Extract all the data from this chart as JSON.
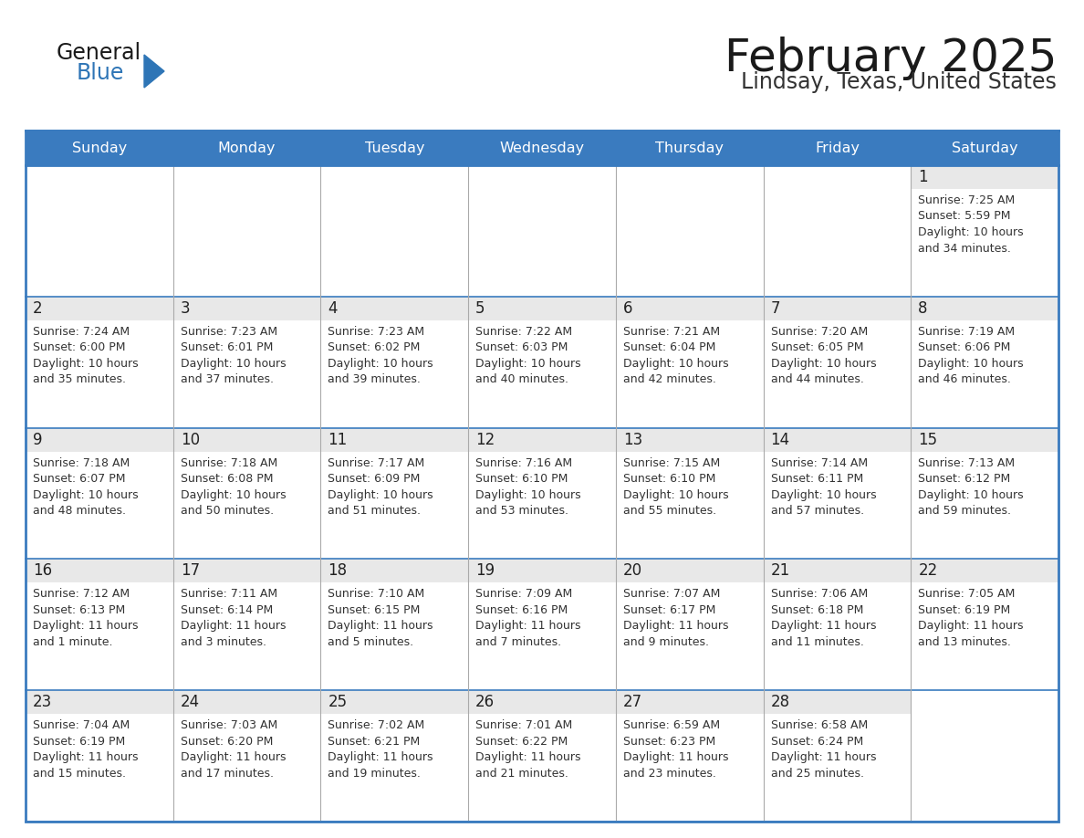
{
  "title": "February 2025",
  "subtitle": "Lindsay, Texas, United States",
  "header_color": "#3a7bbf",
  "header_text_color": "#ffffff",
  "cell_bg_white": "#ffffff",
  "cell_day_strip_color": "#e8e8e8",
  "border_color": "#3a7bbf",
  "day_number_color": "#222222",
  "cell_text_color": "#333333",
  "days_of_week": [
    "Sunday",
    "Monday",
    "Tuesday",
    "Wednesday",
    "Thursday",
    "Friday",
    "Saturday"
  ],
  "logo_general_color": "#1a1a1a",
  "logo_blue_color": "#2e75b6",
  "logo_triangle_color": "#2e75b6",
  "title_color": "#1a1a1a",
  "subtitle_color": "#333333",
  "calendar_data": [
    [
      null,
      null,
      null,
      null,
      null,
      null,
      {
        "day": "1",
        "sunrise": "Sunrise: 7:25 AM",
        "sunset": "Sunset: 5:59 PM",
        "daylight1": "Daylight: 10 hours",
        "daylight2": "and 34 minutes."
      }
    ],
    [
      {
        "day": "2",
        "sunrise": "Sunrise: 7:24 AM",
        "sunset": "Sunset: 6:00 PM",
        "daylight1": "Daylight: 10 hours",
        "daylight2": "and 35 minutes."
      },
      {
        "day": "3",
        "sunrise": "Sunrise: 7:23 AM",
        "sunset": "Sunset: 6:01 PM",
        "daylight1": "Daylight: 10 hours",
        "daylight2": "and 37 minutes."
      },
      {
        "day": "4",
        "sunrise": "Sunrise: 7:23 AM",
        "sunset": "Sunset: 6:02 PM",
        "daylight1": "Daylight: 10 hours",
        "daylight2": "and 39 minutes."
      },
      {
        "day": "5",
        "sunrise": "Sunrise: 7:22 AM",
        "sunset": "Sunset: 6:03 PM",
        "daylight1": "Daylight: 10 hours",
        "daylight2": "and 40 minutes."
      },
      {
        "day": "6",
        "sunrise": "Sunrise: 7:21 AM",
        "sunset": "Sunset: 6:04 PM",
        "daylight1": "Daylight: 10 hours",
        "daylight2": "and 42 minutes."
      },
      {
        "day": "7",
        "sunrise": "Sunrise: 7:20 AM",
        "sunset": "Sunset: 6:05 PM",
        "daylight1": "Daylight: 10 hours",
        "daylight2": "and 44 minutes."
      },
      {
        "day": "8",
        "sunrise": "Sunrise: 7:19 AM",
        "sunset": "Sunset: 6:06 PM",
        "daylight1": "Daylight: 10 hours",
        "daylight2": "and 46 minutes."
      }
    ],
    [
      {
        "day": "9",
        "sunrise": "Sunrise: 7:18 AM",
        "sunset": "Sunset: 6:07 PM",
        "daylight1": "Daylight: 10 hours",
        "daylight2": "and 48 minutes."
      },
      {
        "day": "10",
        "sunrise": "Sunrise: 7:18 AM",
        "sunset": "Sunset: 6:08 PM",
        "daylight1": "Daylight: 10 hours",
        "daylight2": "and 50 minutes."
      },
      {
        "day": "11",
        "sunrise": "Sunrise: 7:17 AM",
        "sunset": "Sunset: 6:09 PM",
        "daylight1": "Daylight: 10 hours",
        "daylight2": "and 51 minutes."
      },
      {
        "day": "12",
        "sunrise": "Sunrise: 7:16 AM",
        "sunset": "Sunset: 6:10 PM",
        "daylight1": "Daylight: 10 hours",
        "daylight2": "and 53 minutes."
      },
      {
        "day": "13",
        "sunrise": "Sunrise: 7:15 AM",
        "sunset": "Sunset: 6:10 PM",
        "daylight1": "Daylight: 10 hours",
        "daylight2": "and 55 minutes."
      },
      {
        "day": "14",
        "sunrise": "Sunrise: 7:14 AM",
        "sunset": "Sunset: 6:11 PM",
        "daylight1": "Daylight: 10 hours",
        "daylight2": "and 57 minutes."
      },
      {
        "day": "15",
        "sunrise": "Sunrise: 7:13 AM",
        "sunset": "Sunset: 6:12 PM",
        "daylight1": "Daylight: 10 hours",
        "daylight2": "and 59 minutes."
      }
    ],
    [
      {
        "day": "16",
        "sunrise": "Sunrise: 7:12 AM",
        "sunset": "Sunset: 6:13 PM",
        "daylight1": "Daylight: 11 hours",
        "daylight2": "and 1 minute."
      },
      {
        "day": "17",
        "sunrise": "Sunrise: 7:11 AM",
        "sunset": "Sunset: 6:14 PM",
        "daylight1": "Daylight: 11 hours",
        "daylight2": "and 3 minutes."
      },
      {
        "day": "18",
        "sunrise": "Sunrise: 7:10 AM",
        "sunset": "Sunset: 6:15 PM",
        "daylight1": "Daylight: 11 hours",
        "daylight2": "and 5 minutes."
      },
      {
        "day": "19",
        "sunrise": "Sunrise: 7:09 AM",
        "sunset": "Sunset: 6:16 PM",
        "daylight1": "Daylight: 11 hours",
        "daylight2": "and 7 minutes."
      },
      {
        "day": "20",
        "sunrise": "Sunrise: 7:07 AM",
        "sunset": "Sunset: 6:17 PM",
        "daylight1": "Daylight: 11 hours",
        "daylight2": "and 9 minutes."
      },
      {
        "day": "21",
        "sunrise": "Sunrise: 7:06 AM",
        "sunset": "Sunset: 6:18 PM",
        "daylight1": "Daylight: 11 hours",
        "daylight2": "and 11 minutes."
      },
      {
        "day": "22",
        "sunrise": "Sunrise: 7:05 AM",
        "sunset": "Sunset: 6:19 PM",
        "daylight1": "Daylight: 11 hours",
        "daylight2": "and 13 minutes."
      }
    ],
    [
      {
        "day": "23",
        "sunrise": "Sunrise: 7:04 AM",
        "sunset": "Sunset: 6:19 PM",
        "daylight1": "Daylight: 11 hours",
        "daylight2": "and 15 minutes."
      },
      {
        "day": "24",
        "sunrise": "Sunrise: 7:03 AM",
        "sunset": "Sunset: 6:20 PM",
        "daylight1": "Daylight: 11 hours",
        "daylight2": "and 17 minutes."
      },
      {
        "day": "25",
        "sunrise": "Sunrise: 7:02 AM",
        "sunset": "Sunset: 6:21 PM",
        "daylight1": "Daylight: 11 hours",
        "daylight2": "and 19 minutes."
      },
      {
        "day": "26",
        "sunrise": "Sunrise: 7:01 AM",
        "sunset": "Sunset: 6:22 PM",
        "daylight1": "Daylight: 11 hours",
        "daylight2": "and 21 minutes."
      },
      {
        "day": "27",
        "sunrise": "Sunrise: 6:59 AM",
        "sunset": "Sunset: 6:23 PM",
        "daylight1": "Daylight: 11 hours",
        "daylight2": "and 23 minutes."
      },
      {
        "day": "28",
        "sunrise": "Sunrise: 6:58 AM",
        "sunset": "Sunset: 6:24 PM",
        "daylight1": "Daylight: 11 hours",
        "daylight2": "and 25 minutes."
      },
      null
    ]
  ]
}
